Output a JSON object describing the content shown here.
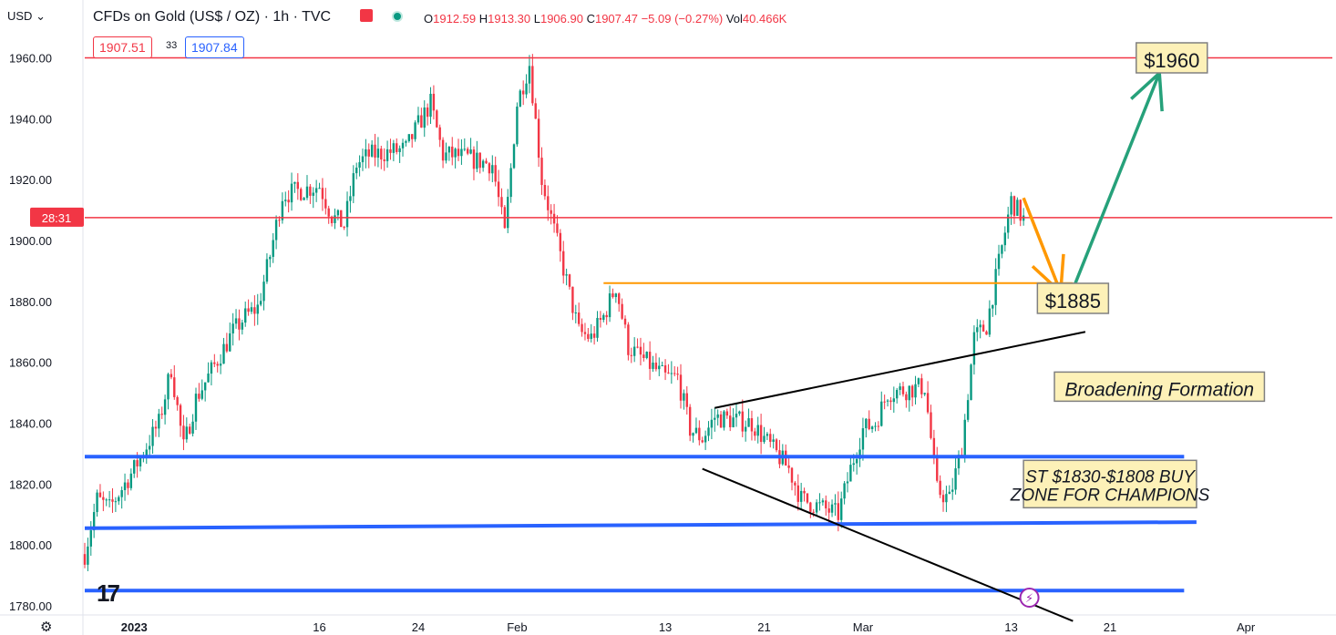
{
  "header": {
    "currency": "USD",
    "title": "CFDs on Gold (US$ / OZ) · 1h · TVC",
    "ohlc": {
      "o": "1912.59",
      "h": "1913.30",
      "l": "1906.90",
      "c": "1907.47",
      "chg": "−5.09 (−0.27%)",
      "vol": "40.466K"
    },
    "bid": "1907.51",
    "spread": "33",
    "ask": "1907.84",
    "countdown": "28:31"
  },
  "icons": {
    "settings": "gear-icon",
    "alert": "alert-icon",
    "status": "status-dot-icon",
    "logo": "tradingview-logo-icon",
    "flash": "flash-icon"
  },
  "colors": {
    "up": "#089981",
    "down": "#f23645",
    "support": "#2962ff",
    "resistance": "#f23645",
    "pivot": "#ff9800",
    "target": "#26a17a",
    "annotation_bg": "#fdf1b8"
  },
  "chart_data": {
    "type": "candlestick",
    "title": "CFDs on Gold (US$ / OZ) · 1h · TVC",
    "y_ticks": [
      1780,
      1800,
      1820,
      1840,
      1860,
      1880,
      1900,
      1920,
      1940,
      1960
    ],
    "y_tick_labels": [
      "1780.00",
      "1800.00",
      "1820.00",
      "1840.00",
      "1860.00",
      "1880.00",
      "1900.00",
      "1920.00",
      "1940.00",
      "1960.00"
    ],
    "ylim": [
      1777,
      1979
    ],
    "x_ticks": [
      {
        "label": "2023",
        "date": "2023-01-01"
      },
      {
        "label": "16",
        "date": "2023-01-16"
      },
      {
        "label": "24",
        "date": "2023-01-24"
      },
      {
        "label": "Feb",
        "date": "2023-02-01"
      },
      {
        "label": "13",
        "date": "2023-02-13"
      },
      {
        "label": "21",
        "date": "2023-02-21"
      },
      {
        "label": "Mar",
        "date": "2023-03-01"
      },
      {
        "label": "13",
        "date": "2023-03-13"
      },
      {
        "label": "21",
        "date": "2023-03-21"
      },
      {
        "label": "Apr",
        "date": "2023-04-01"
      }
    ],
    "xlim": [
      "2022-12-28",
      "2023-04-08"
    ],
    "price_path": [
      [
        "2022-12-28",
        1797
      ],
      [
        "2022-12-29",
        1815
      ],
      [
        "2022-12-30",
        1812
      ],
      [
        "2023-01-01",
        1825
      ],
      [
        "2023-01-03",
        1840
      ],
      [
        "2023-01-04",
        1858
      ],
      [
        "2023-01-05",
        1832
      ],
      [
        "2023-01-06",
        1848
      ],
      [
        "2023-01-09",
        1870
      ],
      [
        "2023-01-10",
        1875
      ],
      [
        "2023-01-11",
        1878
      ],
      [
        "2023-01-12",
        1895
      ],
      [
        "2023-01-13",
        1915
      ],
      [
        "2023-01-16",
        1918
      ],
      [
        "2023-01-17",
        1908
      ],
      [
        "2023-01-18",
        1905
      ],
      [
        "2023-01-19",
        1925
      ],
      [
        "2023-01-20",
        1928
      ],
      [
        "2023-01-23",
        1930
      ],
      [
        "2023-01-24",
        1938
      ],
      [
        "2023-01-25",
        1945
      ],
      [
        "2023-01-26",
        1928
      ],
      [
        "2023-01-27",
        1928
      ],
      [
        "2023-01-30",
        1925
      ],
      [
        "2023-01-31",
        1902
      ],
      [
        "2023-02-01",
        1945
      ],
      [
        "2023-02-02",
        1958
      ],
      [
        "2023-02-03",
        1920
      ],
      [
        "2023-02-06",
        1870
      ],
      [
        "2023-02-07",
        1868
      ],
      [
        "2023-02-08",
        1875
      ],
      [
        "2023-02-09",
        1885
      ],
      [
        "2023-02-10",
        1865
      ],
      [
        "2023-02-13",
        1855
      ],
      [
        "2023-02-14",
        1855
      ],
      [
        "2023-02-15",
        1838
      ],
      [
        "2023-02-16",
        1835
      ],
      [
        "2023-02-17",
        1842
      ],
      [
        "2023-02-20",
        1840
      ],
      [
        "2023-02-21",
        1835
      ],
      [
        "2023-02-22",
        1830
      ],
      [
        "2023-02-23",
        1825
      ],
      [
        "2023-02-24",
        1815
      ],
      [
        "2023-02-27",
        1810
      ],
      [
        "2023-02-28",
        1825
      ],
      [
        "2023-03-01",
        1838
      ],
      [
        "2023-03-02",
        1840
      ],
      [
        "2023-03-03",
        1850
      ],
      [
        "2023-03-06",
        1852
      ],
      [
        "2023-03-07",
        1818
      ],
      [
        "2023-03-08",
        1815
      ],
      [
        "2023-03-09",
        1832
      ],
      [
        "2023-03-10",
        1868
      ],
      [
        "2023-03-11",
        1872
      ],
      [
        "2023-03-13",
        1913
      ],
      [
        "2023-03-14",
        1907
      ]
    ],
    "last_price": 1907.5,
    "horizontal_lines": [
      {
        "name": "resistance-1960",
        "y": 1960,
        "color": "#f23645"
      },
      {
        "name": "last-price-line",
        "y": 1907.5,
        "color": "#f23645"
      },
      {
        "name": "support-1830",
        "y": 1829,
        "color": "#2962ff",
        "x1": "2022-12-28",
        "x2": "2023-03-27"
      },
      {
        "name": "support-1806",
        "y1": 1805.5,
        "y2": 1807.5,
        "color": "#2962ff",
        "x1": "2022-12-28",
        "x2": "2023-03-28"
      },
      {
        "name": "support-1785",
        "y": 1785,
        "color": "#2962ff",
        "x1": "2022-12-28",
        "x2": "2023-03-27"
      },
      {
        "name": "breakout-1886",
        "y": 1886,
        "color": "#ff9800",
        "x1": "2023-02-08",
        "x2": "2023-03-18"
      }
    ],
    "trendlines": [
      {
        "name": "broadening-upper",
        "color": "#000000",
        "points": [
          [
            "2023-02-17",
            1845
          ],
          [
            "2023-03-19",
            1870
          ]
        ]
      },
      {
        "name": "broadening-lower",
        "color": "#000000",
        "points": [
          [
            "2023-02-16",
            1825
          ],
          [
            "2023-03-18",
            1775
          ]
        ]
      }
    ],
    "arrows": [
      {
        "name": "pullback-arrow",
        "color": "#ff9800",
        "points": [
          [
            "2023-03-14",
            1914
          ],
          [
            "2023-03-17",
            1883
          ]
        ]
      },
      {
        "name": "target-arrow",
        "color": "#26a17a",
        "points": [
          [
            "2023-03-18",
            1884
          ],
          [
            "2023-03-25",
            1955
          ]
        ]
      }
    ],
    "annotations": [
      {
        "text": "$1960",
        "date": "2023-03-26",
        "y": 1960
      },
      {
        "text": "$1885",
        "date": "2023-03-18",
        "y": 1881
      },
      {
        "text": "Broadening Formation",
        "date": "2023-03-25",
        "y": 1852
      },
      {
        "text": "ST $1830-$1808 BUY\nZONE FOR CHAMPIONS",
        "date": "2023-03-21",
        "y": 1820
      }
    ]
  }
}
